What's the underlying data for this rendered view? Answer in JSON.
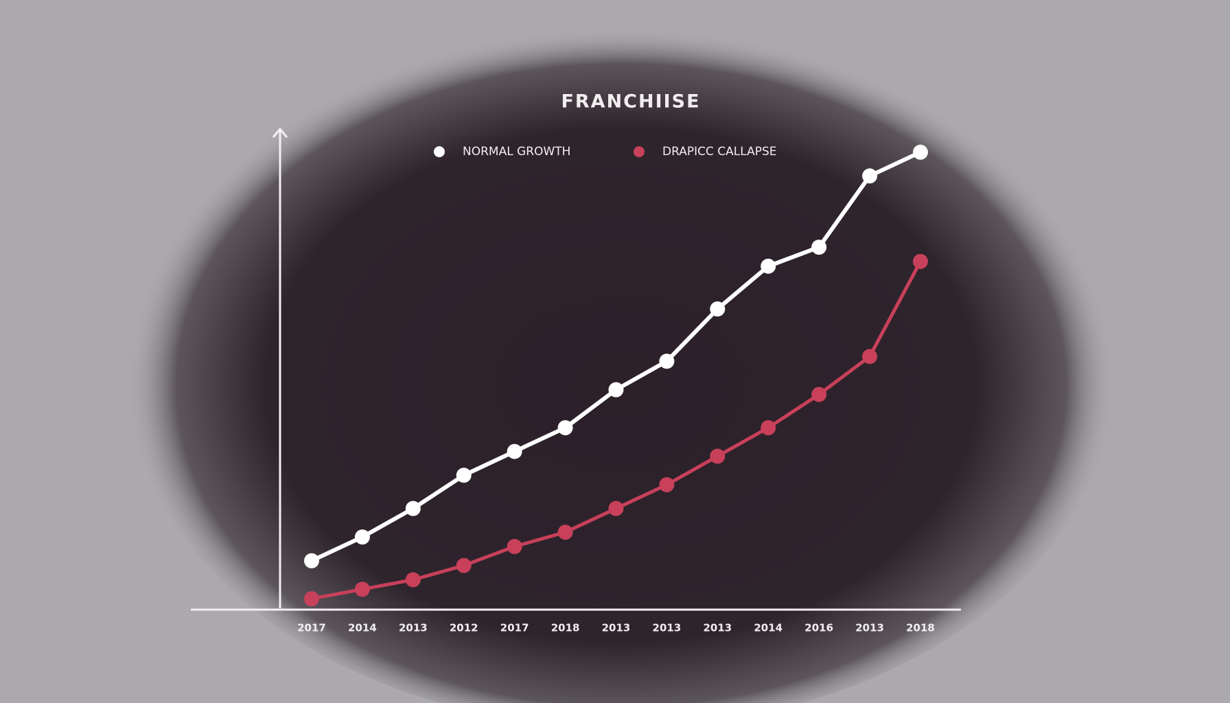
{
  "chart_data": {
    "type": "line",
    "title": "FRANCHIISE",
    "categories": [
      "2017",
      "2014",
      "2013",
      "2012",
      "2017",
      "2018",
      "2013",
      "2013",
      "2013",
      "2014",
      "2016",
      "2013",
      "2018"
    ],
    "series": [
      {
        "name": "NORMAL GROWTH",
        "color": "#ffffff",
        "values": [
          10,
          15,
          21,
          28,
          33,
          38,
          46,
          52,
          63,
          72,
          76,
          91,
          96
        ]
      },
      {
        "name": "DRAPICC CALLAPSE",
        "color": "#c8405a",
        "values": [
          2,
          4,
          6,
          9,
          13,
          16,
          21,
          26,
          32,
          38,
          45,
          53,
          73
        ]
      }
    ],
    "ylim": [
      0,
      100
    ]
  }
}
